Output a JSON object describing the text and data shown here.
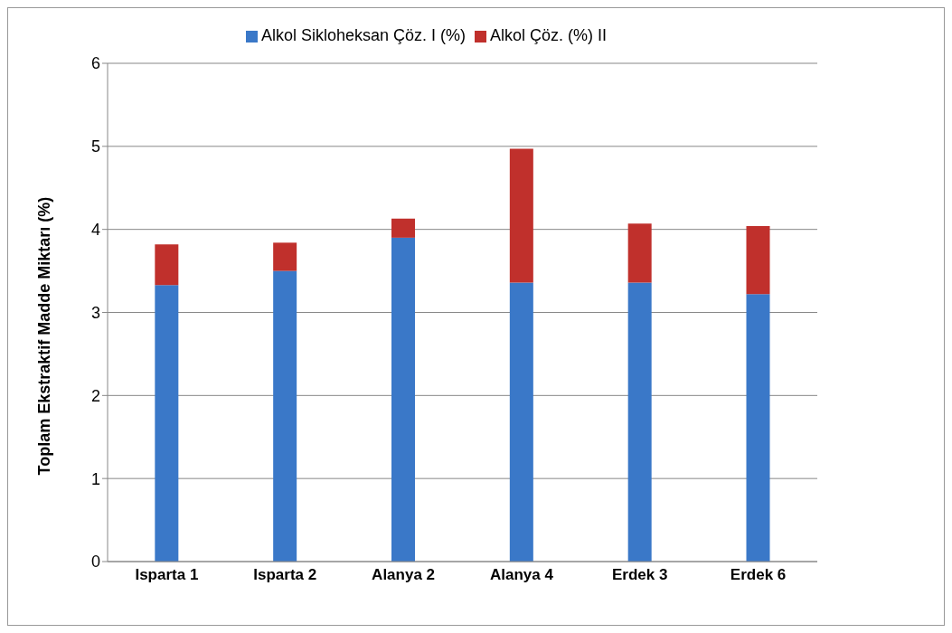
{
  "chart_data": {
    "type": "bar",
    "stacked": true,
    "ylabel": "Toplam Ekstraktif Madde Miktarı (%)",
    "categories": [
      "Isparta 1",
      "Isparta 2",
      "Alanya 2",
      "Alanya 4",
      "Erdek 3",
      "Erdek 6"
    ],
    "series": [
      {
        "name": "Alkol Sikloheksan Çöz. I (%)",
        "color": "#3a78c8",
        "values": [
          3.33,
          3.5,
          3.9,
          3.36,
          3.36,
          3.22
        ]
      },
      {
        "name": "Alkol Çöz. (%) II",
        "color": "#c0302c",
        "values": [
          0.49,
          0.34,
          0.23,
          1.61,
          0.71,
          0.82
        ]
      }
    ],
    "ylim": [
      0,
      6
    ],
    "yticks": [
      0,
      1,
      2,
      3,
      4,
      5,
      6
    ],
    "grid": "y",
    "legend": "top"
  }
}
